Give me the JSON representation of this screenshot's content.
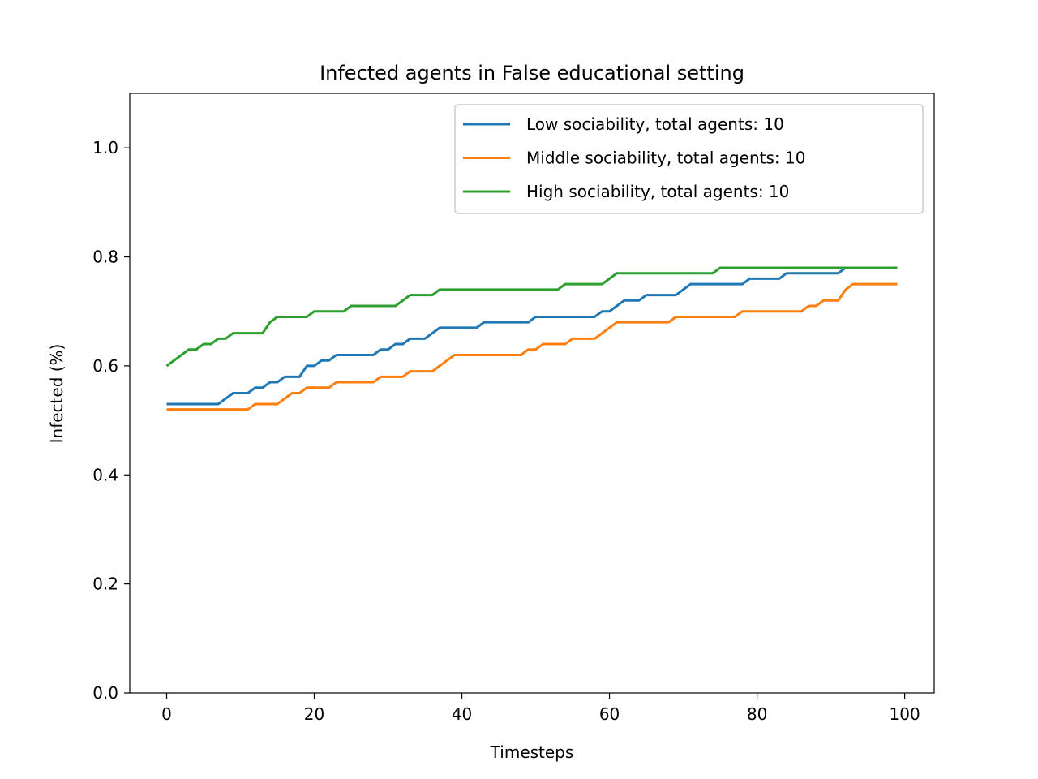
{
  "chart_data": {
    "type": "line",
    "title": "Infected agents in False educational setting",
    "xlabel": "Timesteps",
    "ylabel": "Infected (%)",
    "xlim": [
      -5,
      104
    ],
    "ylim": [
      0.0,
      1.1
    ],
    "xticks": [
      0,
      20,
      40,
      60,
      80,
      100
    ],
    "xtick_labels": [
      "0",
      "20",
      "40",
      "60",
      "80",
      "100"
    ],
    "yticks": [
      0.0,
      0.2,
      0.4,
      0.6,
      0.8,
      1.0
    ],
    "ytick_labels": [
      "0.0",
      "0.2",
      "0.4",
      "0.6",
      "0.8",
      "1.0"
    ],
    "grid": false,
    "legend_position": "top-right",
    "series": [
      {
        "name": "Low sociability, total agents: 10",
        "color": "#1f77b4",
        "points": [
          [
            0,
            0.53
          ],
          [
            7,
            0.53
          ],
          [
            9,
            0.55
          ],
          [
            11,
            0.55
          ],
          [
            12,
            0.56
          ],
          [
            13,
            0.56
          ],
          [
            14,
            0.57
          ],
          [
            15,
            0.57
          ],
          [
            16,
            0.58
          ],
          [
            18,
            0.58
          ],
          [
            19,
            0.6
          ],
          [
            20,
            0.6
          ],
          [
            21,
            0.61
          ],
          [
            22,
            0.61
          ],
          [
            23,
            0.62
          ],
          [
            28,
            0.62
          ],
          [
            29,
            0.63
          ],
          [
            30,
            0.63
          ],
          [
            31,
            0.64
          ],
          [
            32,
            0.64
          ],
          [
            33,
            0.65
          ],
          [
            35,
            0.65
          ],
          [
            37,
            0.67
          ],
          [
            42,
            0.67
          ],
          [
            43,
            0.68
          ],
          [
            49,
            0.68
          ],
          [
            50,
            0.69
          ],
          [
            58,
            0.69
          ],
          [
            59,
            0.7
          ],
          [
            60,
            0.7
          ],
          [
            62,
            0.72
          ],
          [
            64,
            0.72
          ],
          [
            65,
            0.73
          ],
          [
            69,
            0.73
          ],
          [
            71,
            0.75
          ],
          [
            78,
            0.75
          ],
          [
            79,
            0.76
          ],
          [
            83,
            0.76
          ],
          [
            84,
            0.77
          ],
          [
            91,
            0.77
          ],
          [
            92,
            0.78
          ],
          [
            99,
            0.78
          ]
        ]
      },
      {
        "name": "Middle sociability, total agents: 10",
        "color": "#ff7f0e",
        "points": [
          [
            0,
            0.52
          ],
          [
            11,
            0.52
          ],
          [
            12,
            0.53
          ],
          [
            15,
            0.53
          ],
          [
            17,
            0.55
          ],
          [
            18,
            0.55
          ],
          [
            19,
            0.56
          ],
          [
            22,
            0.56
          ],
          [
            23,
            0.57
          ],
          [
            28,
            0.57
          ],
          [
            29,
            0.58
          ],
          [
            32,
            0.58
          ],
          [
            33,
            0.59
          ],
          [
            36,
            0.59
          ],
          [
            39,
            0.62
          ],
          [
            48,
            0.62
          ],
          [
            49,
            0.63
          ],
          [
            50,
            0.63
          ],
          [
            51,
            0.64
          ],
          [
            54,
            0.64
          ],
          [
            55,
            0.65
          ],
          [
            58,
            0.65
          ],
          [
            61,
            0.68
          ],
          [
            68,
            0.68
          ],
          [
            69,
            0.69
          ],
          [
            77,
            0.69
          ],
          [
            78,
            0.7
          ],
          [
            86,
            0.7
          ],
          [
            87,
            0.71
          ],
          [
            88,
            0.71
          ],
          [
            89,
            0.72
          ],
          [
            91,
            0.72
          ],
          [
            92,
            0.74
          ],
          [
            93,
            0.75
          ],
          [
            99,
            0.75
          ]
        ]
      },
      {
        "name": "High sociability, total agents: 10",
        "color": "#2ca02c",
        "points": [
          [
            0,
            0.6
          ],
          [
            3,
            0.63
          ],
          [
            4,
            0.63
          ],
          [
            5,
            0.64
          ],
          [
            6,
            0.64
          ],
          [
            7,
            0.65
          ],
          [
            8,
            0.65
          ],
          [
            9,
            0.66
          ],
          [
            13,
            0.66
          ],
          [
            14,
            0.68
          ],
          [
            15,
            0.69
          ],
          [
            19,
            0.69
          ],
          [
            20,
            0.7
          ],
          [
            24,
            0.7
          ],
          [
            25,
            0.71
          ],
          [
            31,
            0.71
          ],
          [
            33,
            0.73
          ],
          [
            36,
            0.73
          ],
          [
            37,
            0.74
          ],
          [
            53,
            0.74
          ],
          [
            54,
            0.75
          ],
          [
            59,
            0.75
          ],
          [
            61,
            0.77
          ],
          [
            74,
            0.77
          ],
          [
            75,
            0.78
          ],
          [
            99,
            0.78
          ]
        ]
      }
    ]
  }
}
